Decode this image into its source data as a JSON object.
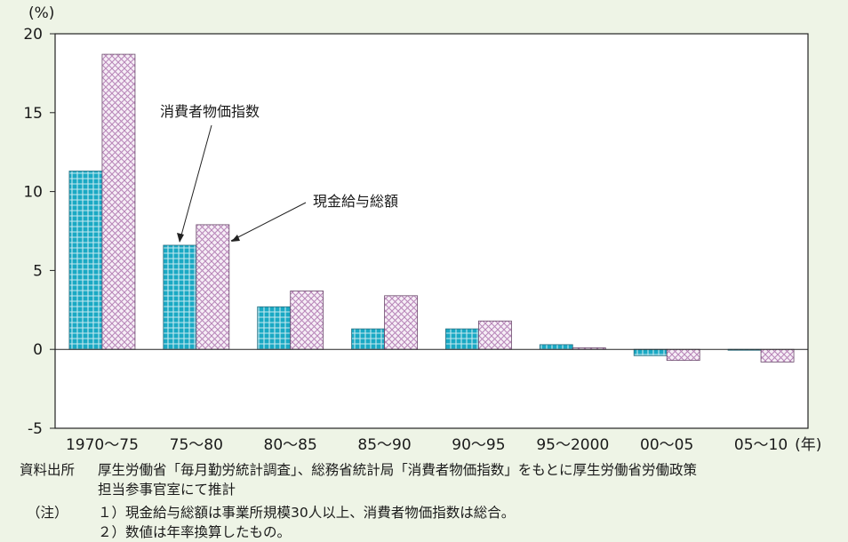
{
  "chart_data": {
    "type": "bar",
    "categories": [
      "1970～75",
      "75～80",
      "80～85",
      "85～90",
      "90～95",
      "95～2000",
      "00～05",
      "05～10"
    ],
    "series": [
      {
        "name": "消費者物価指数",
        "values": [
          11.3,
          6.6,
          2.7,
          1.3,
          1.3,
          0.3,
          -0.4,
          -0.05
        ],
        "color": "#1aa9c4"
      },
      {
        "name": "現金給与総額",
        "values": [
          18.7,
          7.9,
          3.7,
          3.4,
          1.8,
          0.1,
          -0.7,
          -0.8
        ],
        "color": "#d7b4d8"
      }
    ],
    "ylim": [
      -5,
      20
    ],
    "yticks": [
      "20",
      "15",
      "10",
      "5",
      "0",
      "-5"
    ],
    "ylabel_unit": "(%)",
    "xlabel_unit": "(年)",
    "grid": false
  },
  "notes": {
    "source_label": "資料出所",
    "source_line1": "厚生労働省「毎月勤労統計調査」、総務省統計局「消費者物価指数」をもとに厚生労働省労働政策",
    "source_line2": "担当参事官室にて推計",
    "note_label": "（注）",
    "note1": "１）現金給与総額は事業所規模30人以上、消費者物価指数は総合。",
    "note2": "２）数値は年率換算したもの。"
  }
}
